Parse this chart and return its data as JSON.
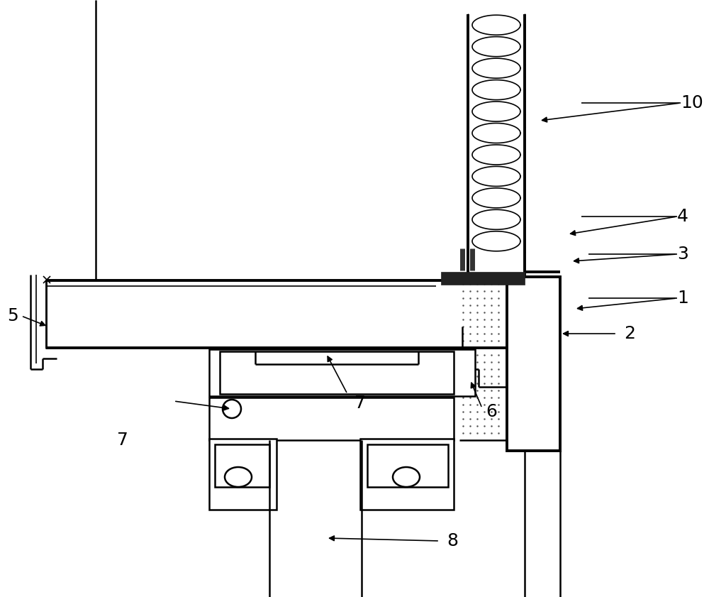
{
  "bg_color": "#ffffff",
  "lc": "#000000",
  "label_fs": 18,
  "figw": 10.0,
  "figh": 8.41,
  "dpi": 100,
  "coil_n": 11,
  "stipple_color": "#555555",
  "stipple_ms": 1.6
}
